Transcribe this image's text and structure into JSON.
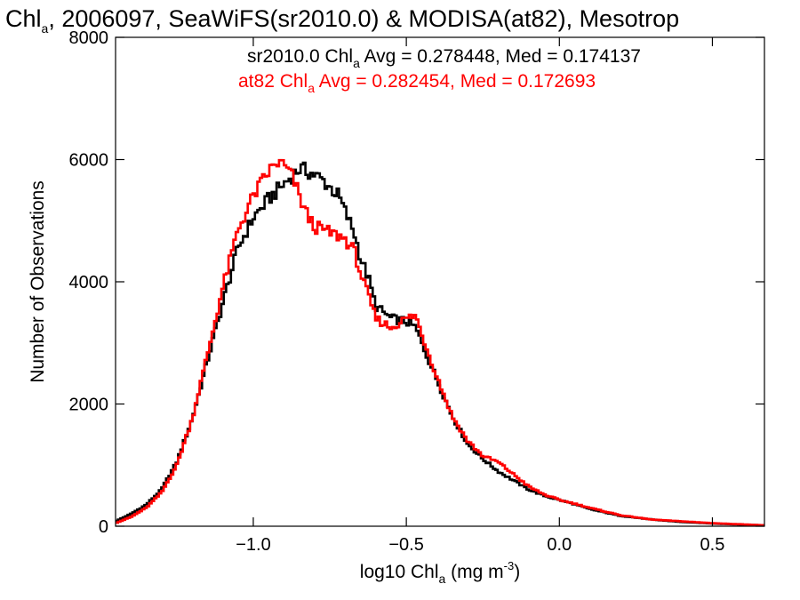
{
  "chart_data": {
    "type": "line",
    "title": {
      "prefix": "Chl",
      "sub": "a",
      "rest": ", 2006097, SeaWiFS(sr2010.0) & MODISA(at82), Mesotrop"
    },
    "xlabel": {
      "prefix": "log10 Chl",
      "sub": "a",
      "mid": " (mg m",
      "sup": "-3",
      "end": ")"
    },
    "ylabel": "Number of Observations",
    "xlim": [
      -1.45,
      0.67
    ],
    "ylim": [
      0,
      8000
    ],
    "x_ticks": [
      {
        "value": -1.0,
        "label": "−1.0"
      },
      {
        "value": -0.5,
        "label": "−0.5"
      },
      {
        "value": 0.0,
        "label": "0.0"
      },
      {
        "value": 0.5,
        "label": "0.5"
      }
    ],
    "y_ticks": [
      {
        "value": 0,
        "label": "0"
      },
      {
        "value": 2000,
        "label": "2000"
      },
      {
        "value": 4000,
        "label": "4000"
      },
      {
        "value": 6000,
        "label": "6000"
      },
      {
        "value": 8000,
        "label": "8000"
      }
    ],
    "grid": false,
    "step": "histogram",
    "series": [
      {
        "name": "sr2010.0",
        "color": "#000000",
        "annotation": {
          "prefix": "sr2010.0 Chl",
          "sub": "a",
          "rest": " Avg = 0.278448, Med = 0.174137"
        },
        "x": [
          -1.45,
          -1.4,
          -1.35,
          -1.3,
          -1.25,
          -1.2,
          -1.15,
          -1.1,
          -1.05,
          -1.0,
          -0.95,
          -0.9,
          -0.87,
          -0.85,
          -0.82,
          -0.8,
          -0.77,
          -0.75,
          -0.72,
          -0.7,
          -0.67,
          -0.65,
          -0.62,
          -0.6,
          -0.55,
          -0.5,
          -0.47,
          -0.45,
          -0.4,
          -0.35,
          -0.3,
          -0.25,
          -0.2,
          -0.15,
          -0.1,
          -0.05,
          0.0,
          0.05,
          0.1,
          0.2,
          0.3,
          0.4,
          0.5,
          0.6,
          0.67
        ],
        "y": [
          80,
          200,
          350,
          600,
          1050,
          1750,
          2700,
          3650,
          4550,
          5050,
          5350,
          5600,
          5750,
          5850,
          5800,
          5750,
          5650,
          5550,
          5400,
          5150,
          4800,
          4400,
          4000,
          3600,
          3400,
          3350,
          3250,
          3000,
          2400,
          1800,
          1350,
          1100,
          900,
          750,
          600,
          500,
          430,
          360,
          280,
          170,
          110,
          70,
          45,
          25,
          15
        ]
      },
      {
        "name": "at82",
        "color": "#ff0000",
        "annotation": {
          "prefix": "at82 Chl",
          "sub": "a",
          "rest": " Avg = 0.282454, Med = 0.172693"
        },
        "x": [
          -1.45,
          -1.4,
          -1.35,
          -1.3,
          -1.25,
          -1.2,
          -1.15,
          -1.1,
          -1.05,
          -1.0,
          -0.95,
          -0.92,
          -0.9,
          -0.87,
          -0.85,
          -0.82,
          -0.8,
          -0.77,
          -0.75,
          -0.72,
          -0.7,
          -0.67,
          -0.65,
          -0.62,
          -0.6,
          -0.55,
          -0.5,
          -0.47,
          -0.45,
          -0.4,
          -0.35,
          -0.3,
          -0.25,
          -0.2,
          -0.15,
          -0.1,
          -0.05,
          0.0,
          0.05,
          0.1,
          0.2,
          0.3,
          0.4,
          0.5,
          0.6,
          0.67
        ],
        "y": [
          50,
          150,
          300,
          550,
          1000,
          1750,
          2800,
          3900,
          4850,
          5400,
          5800,
          5950,
          5900,
          5700,
          5400,
          5050,
          4900,
          4850,
          4800,
          4750,
          4700,
          4500,
          4150,
          3700,
          3400,
          3250,
          3400,
          3450,
          3150,
          2450,
          1800,
          1400,
          1150,
          1050,
          850,
          650,
          520,
          430,
          370,
          300,
          180,
          110,
          80,
          50,
          30,
          15
        ]
      }
    ]
  }
}
